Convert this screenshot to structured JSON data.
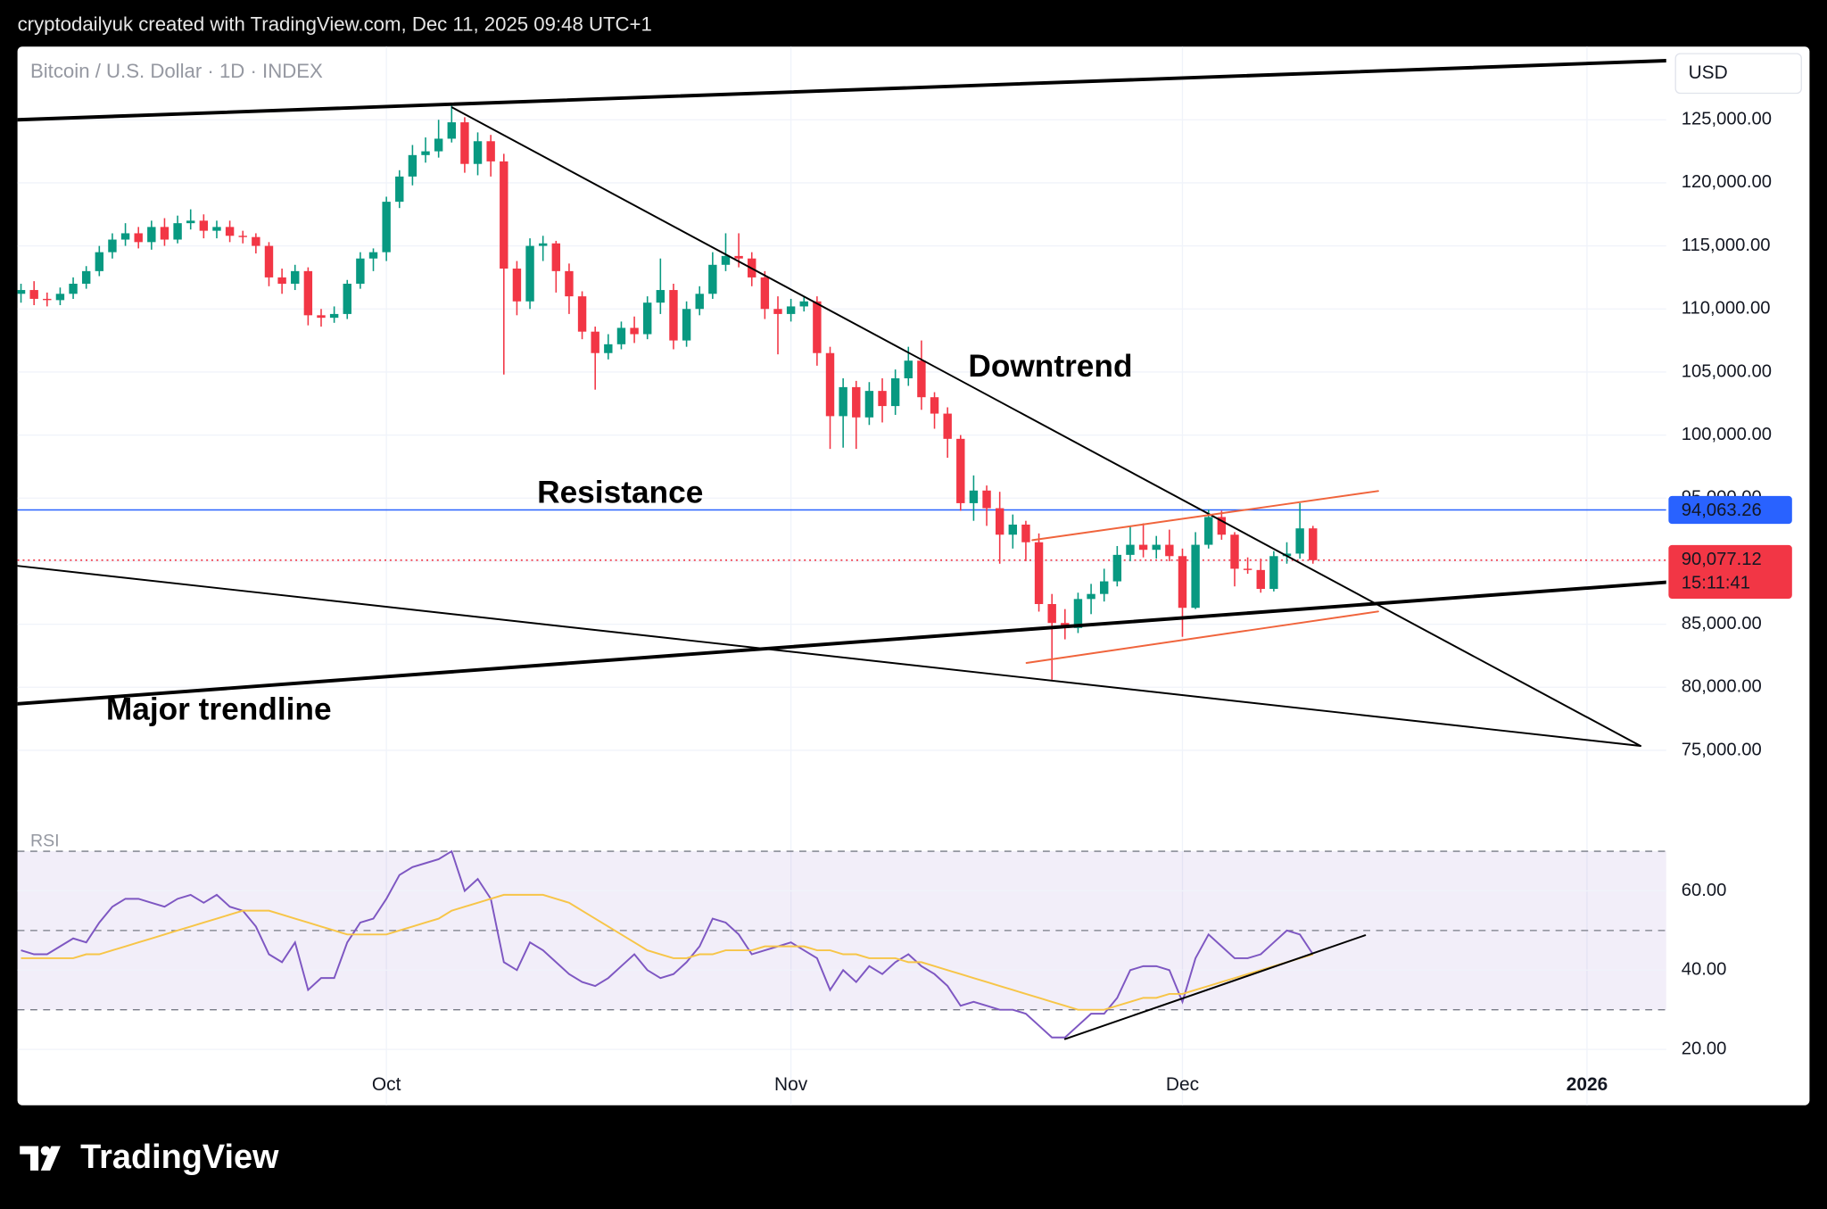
{
  "header": {
    "caption": "cryptodailyuk created with TradingView.com, Dec 11, 2025 09:48 UTC+1"
  },
  "footer": {
    "brand": "TradingView"
  },
  "chart_data": {
    "type": "candlestick",
    "title": "Bitcoin / U.S. Dollar · 1D · INDEX",
    "currency": "USD",
    "annotations": [
      "Downtrend",
      "Resistance",
      "Major trendline"
    ],
    "xlim": [
      -0.27,
      126.07
    ],
    "xticks": [
      {
        "value": 28,
        "label": "Oct"
      },
      {
        "value": 59,
        "label": "Nov"
      },
      {
        "value": 89,
        "label": "Dec"
      },
      {
        "value": 120,
        "label": "2026"
      }
    ],
    "ylim": [
      69600,
      130800
    ],
    "yticks": [
      {
        "value": 75000,
        "label": "75,000.00"
      },
      {
        "value": 80000,
        "label": "80,000.00"
      },
      {
        "value": 85000,
        "label": "85,000.00"
      },
      {
        "value": 90000,
        "label": "90,000.00"
      },
      {
        "value": 95000,
        "label": "95,000.00"
      },
      {
        "value": 100000,
        "label": "100,000.00"
      },
      {
        "value": 105000,
        "label": "105,000.00"
      },
      {
        "value": 110000,
        "label": "110,000.00"
      },
      {
        "value": 115000,
        "label": "115,000.00"
      },
      {
        "value": 120000,
        "label": "120,000.00"
      },
      {
        "value": 125000,
        "label": "125,000.00"
      }
    ],
    "grid": true,
    "up_color": "#089981",
    "down_color": "#f23645",
    "open": [
      111200,
      111500,
      110800,
      110700,
      111200,
      112000,
      113000,
      114500,
      115500,
      116000,
      115300,
      116500,
      115500,
      116800,
      117000,
      116200,
      116500,
      115800,
      115700,
      115000,
      112500,
      112000,
      113000,
      109500,
      109300,
      109600,
      112000,
      114000,
      114500,
      118500,
      120500,
      122200,
      122500,
      123500,
      124800,
      121500,
      123300,
      121700,
      113200,
      110600,
      115000,
      115200,
      113000,
      111000,
      108200,
      106500,
      107200,
      108500,
      108000,
      110500,
      111500,
      107500,
      110000,
      111200,
      113500,
      114200,
      114000,
      112500,
      110000,
      109600,
      110200,
      110600,
      106500,
      101500,
      103800,
      101400,
      103500,
      102300,
      104500,
      105900,
      103000,
      101700,
      99700,
      94600,
      95600,
      94200,
      92100,
      92900,
      91500,
      86600,
      85100,
      84700,
      87000,
      87400,
      88400,
      90500,
      91300,
      90900,
      91300,
      90400,
      86300,
      91300,
      93500,
      92100,
      89400,
      89300,
      87800,
      90400,
      90600,
      92600
    ],
    "high": [
      112000,
      112200,
      111300,
      111700,
      112500,
      113400,
      115000,
      116000,
      116800,
      116500,
      117000,
      117200,
      117400,
      117900,
      117500,
      117000,
      117000,
      116200,
      116000,
      115300,
      113200,
      113500,
      113300,
      110000,
      110200,
      112300,
      114500,
      114800,
      118900,
      121000,
      123000,
      123600,
      125000,
      126200,
      125200,
      124000,
      123800,
      122300,
      113800,
      115600,
      115800,
      115400,
      113600,
      111400,
      108600,
      108000,
      109000,
      109400,
      111000,
      114000,
      112000,
      110600,
      111800,
      114500,
      116000,
      116000,
      114500,
      113000,
      111000,
      110800,
      111000,
      111000,
      107000,
      104500,
      104300,
      104200,
      104500,
      105200,
      107000,
      107500,
      103400,
      102200,
      100000,
      96800,
      96000,
      95500,
      93700,
      93200,
      92200,
      87400,
      86200,
      87500,
      88200,
      89400,
      91200,
      92800,
      93000,
      92000,
      92500,
      91000,
      92300,
      94100,
      94000,
      92300,
      90300,
      90200,
      90800,
      91500,
      94600,
      92800
    ],
    "low": [
      110500,
      110300,
      110200,
      110300,
      110800,
      111600,
      112600,
      114000,
      115000,
      114800,
      114700,
      115000,
      115200,
      116300,
      115600,
      115600,
      115300,
      115200,
      114400,
      111800,
      111200,
      111500,
      108700,
      108600,
      108900,
      109200,
      111600,
      113000,
      113800,
      118000,
      119800,
      121600,
      122000,
      123200,
      120800,
      120600,
      120500,
      104800,
      109500,
      110000,
      113800,
      111300,
      109600,
      107600,
      103600,
      106000,
      106800,
      107300,
      107600,
      109600,
      106800,
      107000,
      109500,
      110800,
      113000,
      113300,
      111800,
      109200,
      106400,
      109000,
      109800,
      105500,
      98900,
      99000,
      98900,
      100800,
      101000,
      101600,
      103900,
      102000,
      100500,
      98200,
      94000,
      93200,
      92800,
      89800,
      91000,
      90000,
      86000,
      80600,
      83800,
      84300,
      85800,
      86800,
      88000,
      90000,
      90300,
      90200,
      90000,
      84000,
      86200,
      91000,
      91700,
      88000,
      89000,
      87500,
      87600,
      89800,
      90200,
      89800
    ],
    "close": [
      111500,
      110800,
      110700,
      111200,
      112000,
      113000,
      114500,
      115500,
      116000,
      115300,
      116500,
      115500,
      116800,
      117000,
      116200,
      116500,
      115800,
      115700,
      115000,
      112500,
      112000,
      113000,
      109500,
      109300,
      109600,
      112000,
      114000,
      114500,
      118500,
      120500,
      122200,
      122500,
      123500,
      124800,
      121500,
      123300,
      121700,
      113200,
      110600,
      115000,
      115200,
      113000,
      111000,
      108200,
      106500,
      107200,
      108500,
      108000,
      110500,
      111500,
      107500,
      110000,
      111200,
      113500,
      114200,
      114000,
      112500,
      110000,
      109600,
      110200,
      110600,
      106500,
      101500,
      103800,
      101400,
      103500,
      102300,
      104500,
      105900,
      103000,
      101700,
      99700,
      94600,
      95600,
      94200,
      92100,
      92900,
      91500,
      86600,
      85100,
      84700,
      87000,
      87400,
      88400,
      90500,
      91300,
      90900,
      91300,
      90400,
      86300,
      91300,
      93500,
      92100,
      89400,
      89300,
      87800,
      90400,
      90600,
      92600,
      90077.12
    ],
    "hline": {
      "value": 94063.26,
      "label": "94,063.26",
      "color": "#2962ff"
    },
    "last_price": {
      "value": 90077.12,
      "label": "90,077.12",
      "countdown": "15:11:41",
      "color": "#f23645"
    },
    "drawings": [
      {
        "points": [
          [
            -0.27,
            125000
          ],
          [
            126.07,
            129687
          ]
        ],
        "color": "#000000",
        "width": 3
      },
      {
        "points": [
          [
            33.04,
            125978
          ],
          [
            124.1,
            75348
          ]
        ],
        "color": "#000000",
        "width": 1.5
      },
      {
        "points": [
          [
            -0.27,
            89628
          ],
          [
            124.1,
            75348
          ]
        ],
        "color": "#000000",
        "width": 1.5
      },
      {
        "points": [
          [
            -0.27,
            78686
          ],
          [
            126.07,
            88330
          ]
        ],
        "color": "#000000",
        "width": 3
      },
      {
        "points": [
          [
            77.5,
            91668
          ],
          [
            104.0,
            95563
          ]
        ],
        "color": "#f0643c",
        "width": 1.5
      },
      {
        "points": [
          [
            77.05,
            81932
          ],
          [
            104.0,
            86012
          ]
        ],
        "color": "#f0643c",
        "width": 1.5
      }
    ],
    "rsi": {
      "type": "line",
      "ylim": [
        5.9,
        77.4
      ],
      "yticks": [
        {
          "value": 20,
          "label": "20.00"
        },
        {
          "value": 40,
          "label": "40.00"
        },
        {
          "value": 60,
          "label": "60.00"
        }
      ],
      "levels": [
        70,
        50,
        30
      ],
      "band": [
        30,
        70
      ],
      "series": [
        {
          "name": "RSI",
          "color": "#7e57c2",
          "values": [
            45,
            44,
            44,
            46,
            48,
            47,
            52,
            56,
            58,
            58,
            57,
            56,
            58,
            59,
            57,
            59,
            56,
            55,
            51,
            44,
            42,
            47,
            35,
            38,
            38,
            47,
            52,
            53,
            58,
            64,
            66,
            67,
            68,
            70,
            60,
            63,
            58,
            42,
            40,
            47,
            45,
            42,
            39,
            37,
            36,
            38,
            41,
            44,
            40,
            38,
            39,
            42,
            46,
            53,
            52,
            49,
            44,
            45,
            46,
            47,
            45,
            43,
            35,
            40,
            37,
            41,
            39,
            42,
            44,
            41,
            39,
            36,
            31,
            32,
            31,
            30,
            30,
            29,
            26,
            23,
            23,
            26,
            29,
            29,
            33,
            40,
            41,
            41,
            40,
            32,
            43,
            49,
            46,
            43,
            43,
            44,
            47,
            50,
            49,
            44
          ]
        },
        {
          "color": "#f7c548",
          "values": [
            43,
            43,
            43,
            43,
            43,
            44,
            44,
            45,
            46,
            47,
            48,
            49,
            50,
            51,
            52,
            53,
            54,
            55,
            55,
            55,
            54,
            53,
            52,
            51,
            50,
            49,
            49,
            49,
            49,
            50,
            51,
            52,
            53,
            55,
            56,
            57,
            58,
            59,
            59,
            59,
            59,
            58,
            57,
            55,
            53,
            51,
            49,
            47,
            45,
            44,
            43,
            43,
            44,
            44,
            45,
            45,
            45,
            46,
            46,
            46,
            46,
            45,
            45,
            44,
            44,
            43,
            43,
            43,
            42,
            42,
            41,
            40,
            39,
            38,
            37,
            36,
            35,
            34,
            33,
            32,
            31,
            30,
            30,
            30,
            31,
            32,
            33,
            33,
            34,
            34,
            35,
            36,
            37,
            38,
            39,
            40,
            41,
            42,
            43,
            44
          ]
        }
      ],
      "drawings": [
        {
          "points": [
            [
              80,
              22.6
            ],
            [
              103.0,
              48.8
            ]
          ],
          "color": "#000000",
          "width": 1.5
        }
      ]
    }
  }
}
